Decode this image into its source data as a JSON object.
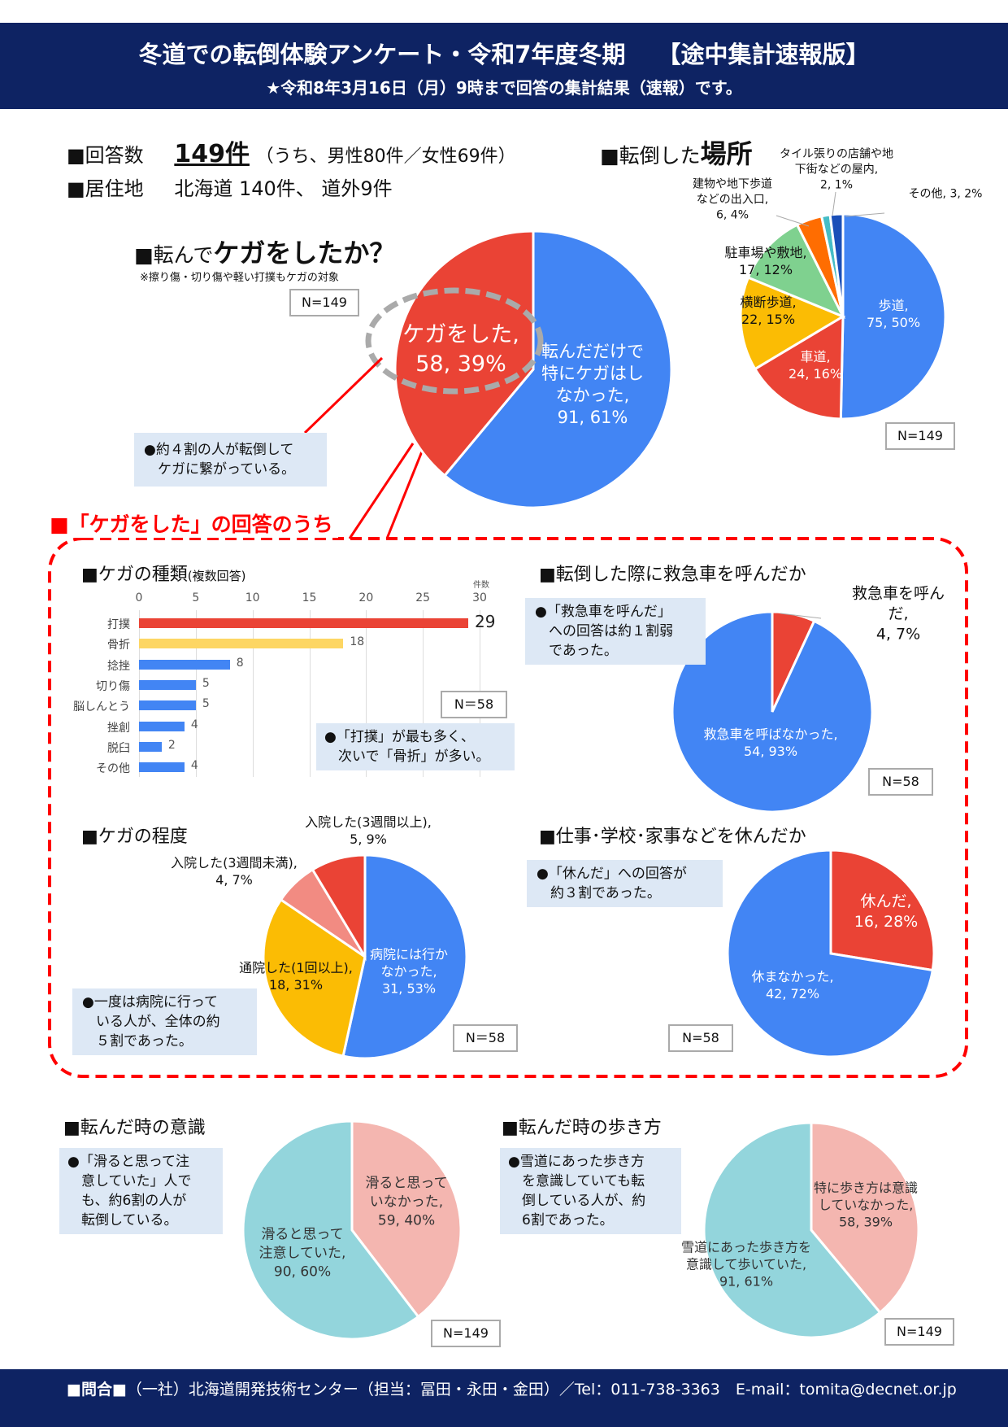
{
  "header": {
    "title": "冬道での転倒体験アンケート・令和7年度冬期　 【途中集計速報版】",
    "subtitle": "★令和8年3月16日（月）9時まで回答の集計結果（速報）です。"
  },
  "summary": {
    "responses_label": "■回答数",
    "responses_value": "149件",
    "responses_breakdown": "（うち、男性80件／女性69件）",
    "residence_label": "■居住地",
    "residence_value": "北海道  140件、 道外9件"
  },
  "sections": {
    "injury": {
      "title_prefix": "■転んで",
      "title_big": "ケガをしたか？",
      "note": "※擦り傷・切り傷や軽い打撲もケガの対象",
      "n": "N=149",
      "callout": "●約４割の人が転倒して\n　ケガに繋がっている。"
    },
    "location": {
      "title_prefix": "■転倒した",
      "title_big": "場所",
      "n": "N=149"
    },
    "subgroup_title": "■「ケガをした」の回答のうち",
    "types": {
      "title": "■ケガの種類",
      "title_small": "(複数回答)",
      "unit": "件数",
      "n": "N＝58",
      "callout": "●「打撲」が最も多く、\n　次いで「骨折」が多い。"
    },
    "ambulance": {
      "title": "■転倒した際に救急車を呼んだか",
      "n": "N=58",
      "callout": "●「救急車を呼んだ」\n　への回答は約１割弱\n　であった。"
    },
    "severity": {
      "title": "■ケガの程度",
      "n": "N＝58",
      "callout": "●一度は病院に行って\n　いる人が、全体の約\n　５割であった。"
    },
    "rest": {
      "title": "■仕事･学校･家事などを休んだか",
      "n": "N=58",
      "callout": "●「休んだ」への回答が\n　約３割であった。"
    },
    "awareness": {
      "title": "■転んだ時の意識",
      "n": "N=149",
      "callout": "●「滑ると思って注\n　意していた」人で\n　も、約6割の人が\n　転倒している。"
    },
    "walking": {
      "title": "■転んだ時の歩き方",
      "n": "N=149",
      "callout": "●雪道にあった歩き方\n　を意識していても転\n　倒している人が、約\n　6割であった。"
    }
  },
  "footer": {
    "label": "■問合■",
    "text": "（一社）北海道開発技術センター（担当：冨田・永田・金田）／Tel：011-738-3363　E-mail：tomita@decnet.or.jp"
  },
  "chart_data": [
    {
      "type": "pie",
      "title": "転んでケガをしたか？",
      "slices": [
        {
          "label": "転んだだけで\n特にケガはし\nなかった,\n91, 61%",
          "value": 91,
          "percent": 61,
          "color": "#4285f4"
        },
        {
          "label": "ケガをした,\n58, 39%",
          "value": 58,
          "percent": 39,
          "color": "#ea4335"
        }
      ]
    },
    {
      "type": "pie",
      "title": "転倒した場所",
      "slices": [
        {
          "label": "歩道,\n75, 50%",
          "value": 75,
          "percent": 50,
          "color": "#4285f4"
        },
        {
          "label": "車道,\n24, 16%",
          "value": 24,
          "percent": 16,
          "color": "#ea4335"
        },
        {
          "label": "横断歩道,\n22, 15%",
          "value": 22,
          "percent": 15,
          "color": "#fbbc04"
        },
        {
          "label": "駐車場や敷地,\n17, 12%",
          "value": 17,
          "percent": 12,
          "color": "#7fd18f"
        },
        {
          "label": "建物や地下歩道\nなどの出入口,\n6, 4%",
          "value": 6,
          "percent": 4,
          "color": "#ff6d01"
        },
        {
          "label": "タイル張りの店舗や地\n下街などの屋内,\n2, 1%",
          "value": 2,
          "percent": 1,
          "color": "#46bdc6"
        },
        {
          "label": "その他, 3, 2%",
          "value": 3,
          "percent": 2,
          "color": "#1a4fb8"
        }
      ]
    },
    {
      "type": "bar",
      "title": "ケガの種類(複数回答)",
      "xlabel": "件数",
      "xlim": [
        0,
        30
      ],
      "ticks": [
        0,
        5,
        10,
        15,
        20,
        25,
        30
      ],
      "categories": [
        "打撲",
        "骨折",
        "捻挫",
        "切り傷",
        "脳しんとう",
        "挫創",
        "脱臼",
        "その他"
      ],
      "values": [
        29,
        18,
        8,
        5,
        5,
        4,
        2,
        4
      ],
      "colors": [
        "#ea4335",
        "#fdd663",
        "#4285f4",
        "#4285f4",
        "#4285f4",
        "#4285f4",
        "#4285f4",
        "#4285f4"
      ]
    },
    {
      "type": "pie",
      "title": "転倒した際に救急車を呼んだか",
      "slices": [
        {
          "label": "救急車を呼んだ,\n4, 7%",
          "value": 4,
          "percent": 7,
          "color": "#ea4335"
        },
        {
          "label": "救急車を呼ばなかった,\n54, 93%",
          "value": 54,
          "percent": 93,
          "color": "#4285f4"
        }
      ]
    },
    {
      "type": "pie",
      "title": "ケガの程度",
      "slices": [
        {
          "label": "病院には行か\nなかった,\n31, 53%",
          "value": 31,
          "percent": 53,
          "color": "#4285f4"
        },
        {
          "label": "通院した(1回以上),\n18, 31%",
          "value": 18,
          "percent": 31,
          "color": "#fbbc04"
        },
        {
          "label": "入院した(3週間未満),\n4, 7%",
          "value": 4,
          "percent": 7,
          "color": "#f28b82"
        },
        {
          "label": "入院した(3週間以上),\n5, 9%",
          "value": 5,
          "percent": 9,
          "color": "#ea4335"
        }
      ]
    },
    {
      "type": "pie",
      "title": "仕事･学校･家事などを休んだか",
      "slices": [
        {
          "label": "休んだ,\n16, 28%",
          "value": 16,
          "percent": 28,
          "color": "#ea4335"
        },
        {
          "label": "休まなかった,\n42, 72%",
          "value": 42,
          "percent": 72,
          "color": "#4285f4"
        }
      ]
    },
    {
      "type": "pie",
      "title": "転んだ時の意識",
      "slices": [
        {
          "label": "滑ると思って\nいなかった,\n59, 40%",
          "value": 59,
          "percent": 40,
          "color": "#f4b6b0"
        },
        {
          "label": "滑ると思って\n注意していた,\n90, 60%",
          "value": 90,
          "percent": 60,
          "color": "#93d5dc"
        }
      ]
    },
    {
      "type": "pie",
      "title": "転んだ時の歩き方",
      "slices": [
        {
          "label": "特に歩き方は意識\nしていなかった,\n58, 39%",
          "value": 58,
          "percent": 39,
          "color": "#f4b6b0"
        },
        {
          "label": "雪道にあった歩き方を\n意識して歩いていた,\n91, 61%",
          "value": 91,
          "percent": 61,
          "color": "#93d5dc"
        }
      ]
    }
  ]
}
